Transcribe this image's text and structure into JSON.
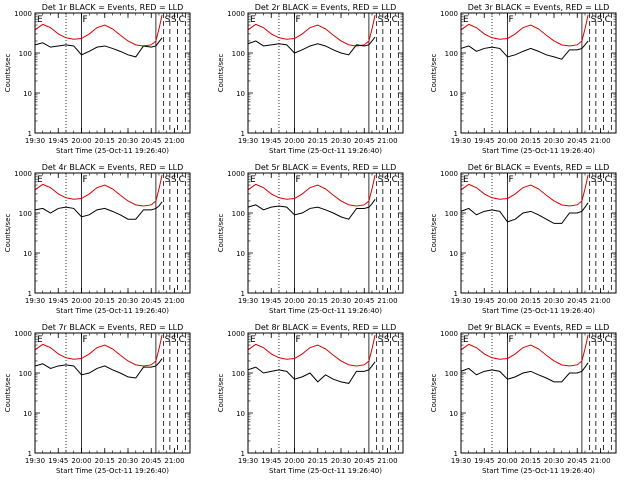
{
  "chart_data": {
    "type": "line",
    "start_time": "Start Time (25-Oct-11 19:26:40)",
    "ylabel": "Counts/sec",
    "yscale": "log",
    "ylim": [
      1,
      1000
    ],
    "xlim": [
      "19:30",
      "21:10"
    ],
    "x_tick_labels": [
      "19:30",
      "19:45",
      "20:00",
      "20:15",
      "20:30",
      "20:45",
      "21:00"
    ],
    "y_tick_labels": [
      "1",
      "10",
      "100",
      "1000"
    ],
    "markers": [
      {
        "time": "19:50",
        "style": "dotted"
      },
      {
        "time": "20:00",
        "style": "solid",
        "label": "F"
      },
      {
        "time": "20:48",
        "style": "solid"
      },
      {
        "time": "20:53",
        "style": "dashed",
        "label": "S"
      },
      {
        "time": "20:57",
        "style": "dashed",
        "label": "S"
      },
      {
        "time": "21:02",
        "style": "dashed",
        "label": "C"
      },
      {
        "time": "21:07",
        "style": "dashed"
      }
    ],
    "corner_label": "E",
    "x_minutes": [
      0,
      5,
      10,
      15,
      20,
      25,
      30,
      35,
      40,
      45,
      50,
      55,
      60,
      65,
      70,
      75,
      78,
      80,
      82
    ],
    "red_lld": [
      380,
      520,
      430,
      300,
      240,
      220,
      230,
      300,
      430,
      500,
      400,
      280,
      200,
      160,
      150,
      160,
      200,
      400,
      900
    ],
    "panels": [
      {
        "title": "Det 1r  BLACK = Events, RED = LLD"
      },
      {
        "title": "Det 2r  BLACK = Events, RED = LLD"
      },
      {
        "title": "Det 3r  BLACK = Events, RED = LLD"
      },
      {
        "title": "Det 4r  BLACK = Events, RED = LLD"
      },
      {
        "title": "Det 5r  BLACK = Events, RED = LLD"
      },
      {
        "title": "Det 6r  BLACK = Events, RED = LLD"
      },
      {
        "title": "Det 7r  BLACK = Events, RED = LLD"
      },
      {
        "title": "Det 8r  BLACK = Events, RED = LLD"
      },
      {
        "title": "Det 9r  BLACK = Events, RED = LLD"
      }
    ],
    "black_events": [
      [
        160,
        180,
        140,
        150,
        160,
        150,
        90,
        110,
        140,
        150,
        130,
        110,
        90,
        80,
        150,
        140,
        150,
        190,
        240
      ],
      [
        170,
        200,
        150,
        160,
        170,
        160,
        100,
        120,
        150,
        170,
        150,
        120,
        100,
        90,
        160,
        150,
        160,
        200,
        250
      ],
      [
        130,
        150,
        110,
        130,
        140,
        130,
        80,
        90,
        110,
        130,
        110,
        90,
        80,
        70,
        120,
        120,
        130,
        160,
        200
      ],
      [
        120,
        130,
        100,
        130,
        140,
        130,
        80,
        90,
        120,
        130,
        110,
        90,
        70,
        70,
        120,
        120,
        130,
        150,
        190
      ],
      [
        140,
        160,
        120,
        140,
        150,
        140,
        90,
        100,
        130,
        140,
        120,
        100,
        80,
        70,
        130,
        130,
        140,
        170,
        220
      ],
      [
        110,
        130,
        90,
        110,
        120,
        110,
        60,
        70,
        100,
        110,
        90,
        70,
        55,
        55,
        100,
        100,
        110,
        140,
        180
      ],
      [
        150,
        170,
        130,
        150,
        160,
        150,
        90,
        100,
        130,
        150,
        120,
        100,
        80,
        75,
        140,
        140,
        150,
        180,
        230
      ],
      [
        120,
        140,
        100,
        110,
        120,
        110,
        70,
        80,
        100,
        60,
        90,
        70,
        60,
        55,
        110,
        110,
        120,
        150,
        190
      ],
      [
        110,
        130,
        90,
        110,
        120,
        110,
        70,
        80,
        100,
        110,
        90,
        75,
        60,
        60,
        100,
        100,
        110,
        140,
        180
      ]
    ]
  }
}
